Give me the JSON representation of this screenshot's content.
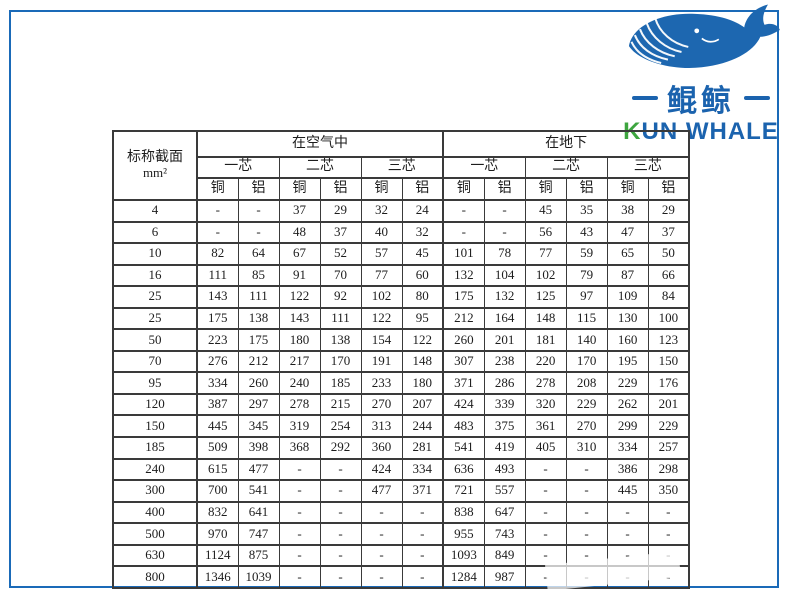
{
  "page": {
    "frame_color": "#1a6ab8"
  },
  "logo": {
    "cn_name": "鲲鲸",
    "en_first": "K",
    "en_rest": "UN WHALE",
    "blue": "#1b63ae",
    "green": "#3da53f"
  },
  "table": {
    "header": {
      "col1_title": "标称截面",
      "col1_unit": "mm²",
      "group_air": "在空气中",
      "group_ground": "在地下",
      "cores": [
        "一芯",
        "二芯",
        "三芯"
      ],
      "materials": [
        "铜",
        "铝"
      ]
    },
    "rows": [
      [
        "4",
        "-",
        "-",
        "37",
        "29",
        "32",
        "24",
        "-",
        "-",
        "45",
        "35",
        "38",
        "29"
      ],
      [
        "6",
        "-",
        "-",
        "48",
        "37",
        "40",
        "32",
        "-",
        "-",
        "56",
        "43",
        "47",
        "37"
      ],
      [
        "10",
        "82",
        "64",
        "67",
        "52",
        "57",
        "45",
        "101",
        "78",
        "77",
        "59",
        "65",
        "50"
      ],
      [
        "16",
        "111",
        "85",
        "91",
        "70",
        "77",
        "60",
        "132",
        "104",
        "102",
        "79",
        "87",
        "66"
      ],
      [
        "25",
        "143",
        "111",
        "122",
        "92",
        "102",
        "80",
        "175",
        "132",
        "125",
        "97",
        "109",
        "84"
      ],
      [
        "25",
        "175",
        "138",
        "143",
        "111",
        "122",
        "95",
        "212",
        "164",
        "148",
        "115",
        "130",
        "100"
      ],
      [
        "50",
        "223",
        "175",
        "180",
        "138",
        "154",
        "122",
        "260",
        "201",
        "181",
        "140",
        "160",
        "123"
      ],
      [
        "70",
        "276",
        "212",
        "217",
        "170",
        "191",
        "148",
        "307",
        "238",
        "220",
        "170",
        "195",
        "150"
      ],
      [
        "95",
        "334",
        "260",
        "240",
        "185",
        "233",
        "180",
        "371",
        "286",
        "278",
        "208",
        "229",
        "176"
      ],
      [
        "120",
        "387",
        "297",
        "278",
        "215",
        "270",
        "207",
        "424",
        "339",
        "320",
        "229",
        "262",
        "201"
      ],
      [
        "150",
        "445",
        "345",
        "319",
        "254",
        "313",
        "244",
        "483",
        "375",
        "361",
        "270",
        "299",
        "229"
      ],
      [
        "185",
        "509",
        "398",
        "368",
        "292",
        "360",
        "281",
        "541",
        "419",
        "405",
        "310",
        "334",
        "257"
      ],
      [
        "240",
        "615",
        "477",
        "-",
        "-",
        "424",
        "334",
        "636",
        "493",
        "-",
        "-",
        "386",
        "298"
      ],
      [
        "300",
        "700",
        "541",
        "-",
        "-",
        "477",
        "371",
        "721",
        "557",
        "-",
        "-",
        "445",
        "350"
      ],
      [
        "400",
        "832",
        "641",
        "-",
        "-",
        "-",
        "-",
        "838",
        "647",
        "-",
        "-",
        "-",
        "-"
      ],
      [
        "500",
        "970",
        "747",
        "-",
        "-",
        "-",
        "-",
        "955",
        "743",
        "-",
        "-",
        "-",
        "-"
      ],
      [
        "630",
        "1124",
        "875",
        "-",
        "-",
        "-",
        "-",
        "1093",
        "849",
        "-",
        "-",
        "-",
        "-"
      ],
      [
        "800",
        "1346",
        "1039",
        "-",
        "-",
        "-",
        "-",
        "1284",
        "987",
        "-",
        "-",
        "-",
        "-"
      ]
    ]
  }
}
